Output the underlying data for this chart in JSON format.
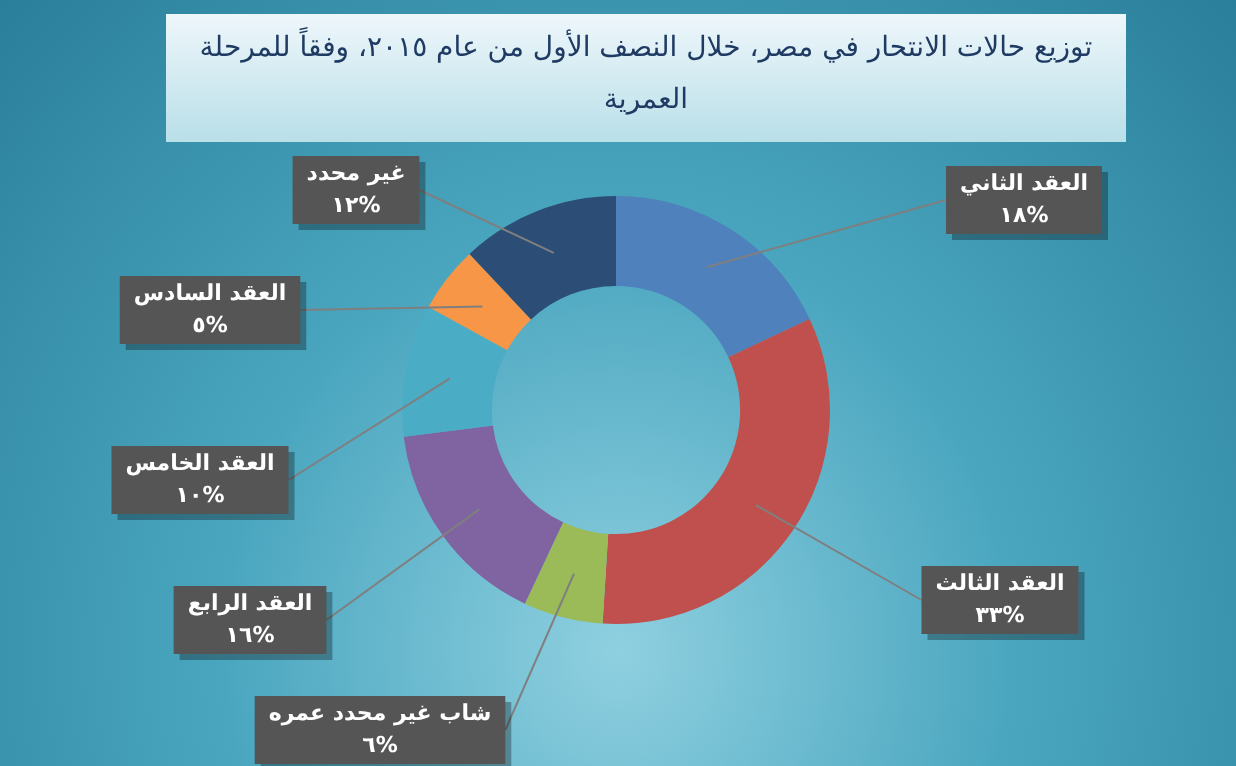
{
  "chart_data": {
    "type": "donut",
    "title": "توزيع حالات الانتحار في مصر، خلال النصف الأول من عام ٢٠١٥، وفقاً للمرحلة العمرية",
    "categories": [
      "العقد الثاني",
      "العقد الثالث",
      "شاب غير محدد عمره",
      "العقد الرابع",
      "العقد الخامس",
      "العقد السادس",
      "غير محدد"
    ],
    "values": [
      18,
      33,
      6,
      16,
      10,
      5,
      12
    ],
    "value_labels": [
      "١٨%",
      "٣٣%",
      "٦%",
      "١٦%",
      "١٠%",
      "٥%",
      "١٢%"
    ],
    "colors": [
      "#4f81bd",
      "#c0504d",
      "#9bbb59",
      "#8064a2",
      "#4bacc6",
      "#f79646",
      "#2c4d75"
    ],
    "legend": false
  }
}
